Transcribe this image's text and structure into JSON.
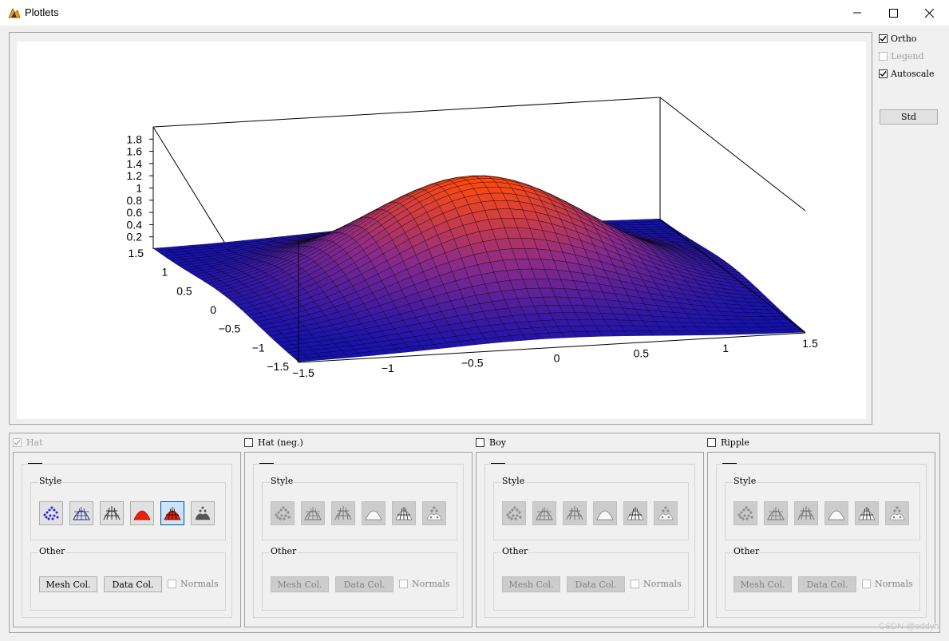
{
  "window": {
    "title": "Plotlets",
    "controls": [
      "minimize",
      "maximize",
      "close"
    ]
  },
  "plot": {
    "z_ticks": [
      "0.2",
      "0.4",
      "0.6",
      "0.8",
      "1",
      "1.2",
      "1.4",
      "1.6",
      "1.8"
    ],
    "y_ticks": [
      "1.5",
      "1",
      "0.5",
      "0",
      "−0.5",
      "−1",
      "−1.5"
    ],
    "x_ticks": [
      "−1.5",
      "−1",
      "−0.5",
      "0",
      "0.5",
      "1",
      "1.5"
    ],
    "surface_colors": {
      "low": "#1010b0",
      "mid": "#8a2a8a",
      "high": "#ff4a10",
      "mesh": "#000000"
    }
  },
  "options": {
    "ortho": {
      "label": "Ortho",
      "checked": true,
      "enabled": true
    },
    "legend": {
      "label": "Legend",
      "checked": false,
      "enabled": false
    },
    "autoscale": {
      "label": "Autoscale",
      "checked": true,
      "enabled": true
    },
    "std_button": "Std"
  },
  "panels": [
    {
      "label": "Hat",
      "checked": true,
      "enabled": false,
      "active": true
    },
    {
      "label": "Hat (neg.)",
      "checked": false,
      "enabled": true,
      "active": false
    },
    {
      "label": "Boy",
      "checked": false,
      "enabled": true,
      "active": false
    },
    {
      "label": "Ripple",
      "checked": false,
      "enabled": true,
      "active": false
    }
  ],
  "panel_labels": {
    "style": "Style",
    "other": "Other",
    "mesh_col": "Mesh Col.",
    "data_col": "Data Col.",
    "normals": "Normals"
  },
  "style_icons": [
    "points-style-icon",
    "mesh-style-icon",
    "grid-style-icon",
    "solid-style-icon",
    "solid-mesh-style-icon",
    "hidden-points-style-icon"
  ],
  "selected_style_index": 4,
  "watermark": "CSDN @eddyh"
}
